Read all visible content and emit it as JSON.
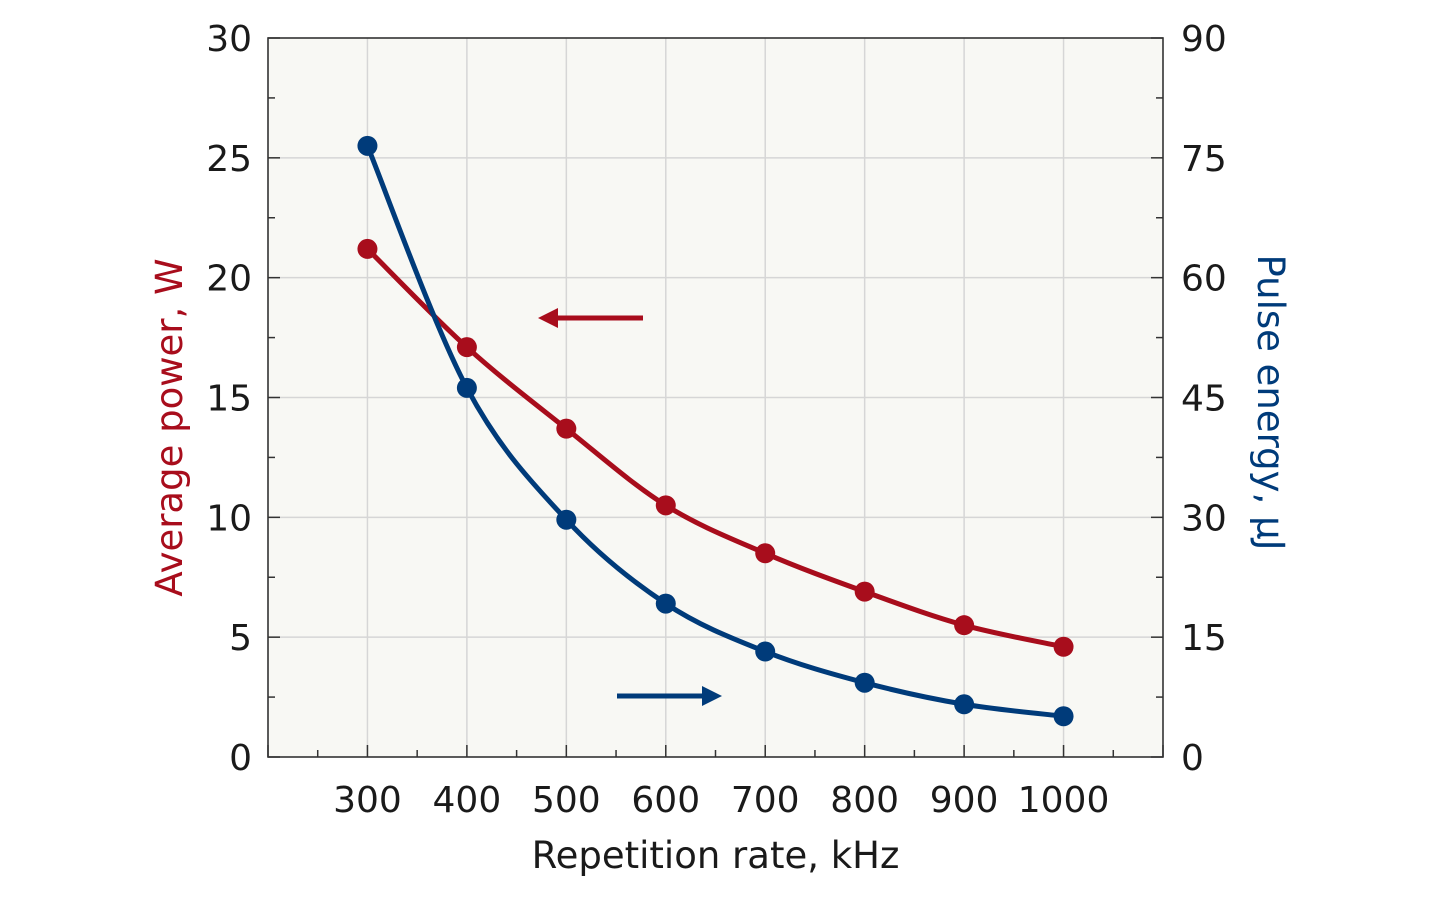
{
  "chart_data": {
    "type": "line",
    "xlabel": "Repetition rate, kHz",
    "ylabel_left": "Average power, W",
    "ylabel_right": "Pulse energy, µJ",
    "xlim": [
      200,
      1100
    ],
    "ylim_left": [
      0,
      30
    ],
    "ylim_right": [
      0,
      90
    ],
    "x_ticks": [
      300,
      400,
      500,
      600,
      700,
      800,
      900,
      1000
    ],
    "y_ticks_left": [
      0,
      5,
      10,
      15,
      20,
      25,
      30
    ],
    "y_ticks_right": [
      0,
      15,
      30,
      45,
      60,
      75,
      90
    ],
    "grid": true,
    "background_color": "#f8f8f4",
    "series": [
      {
        "axis": "left",
        "color": "#a80d1c",
        "x": [
          300,
          400,
          500,
          600,
          700,
          800,
          900,
          1000
        ],
        "values": [
          21.2,
          17.1,
          13.7,
          10.5,
          8.5,
          6.9,
          5.5,
          4.6
        ]
      },
      {
        "axis": "right",
        "color": "#003b7a",
        "x": [
          300,
          400,
          500,
          600,
          700,
          800,
          900,
          1000
        ],
        "values": [
          76.5,
          46.2,
          29.7,
          19.2,
          13.2,
          9.3,
          6.6,
          5.1
        ]
      }
    ],
    "annotations": [
      {
        "type": "arrow",
        "direction": "left",
        "points_to": "left-axis",
        "color": "#a80d1c"
      },
      {
        "type": "arrow",
        "direction": "right",
        "points_to": "right-axis",
        "color": "#003b7a"
      }
    ]
  }
}
